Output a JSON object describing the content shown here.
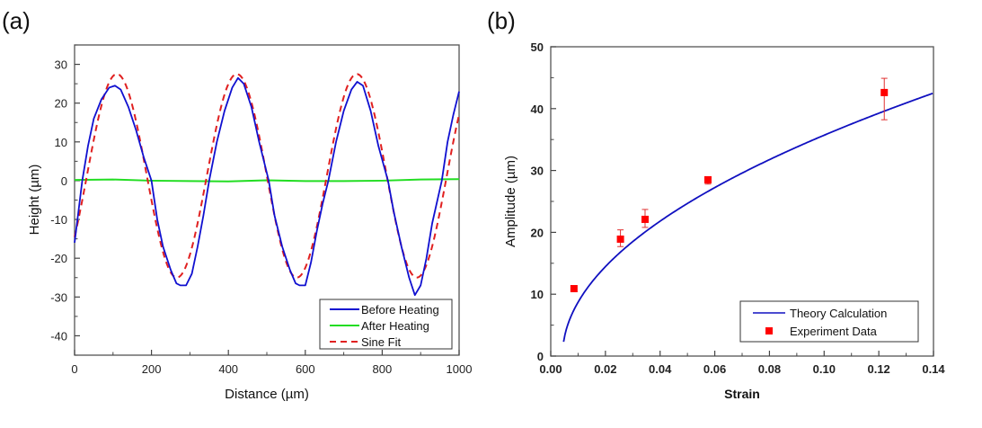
{
  "chart_data": [
    {
      "panel": "(a)",
      "type": "line",
      "title": "",
      "xlabel": "Distance (µm)",
      "ylabel": "Height (µm)",
      "xlim": [
        0,
        1000
      ],
      "ylim": [
        -45,
        35
      ],
      "xticks": [
        0,
        200,
        400,
        600,
        800,
        1000
      ],
      "yticks": [
        -40,
        -30,
        -20,
        -10,
        0,
        10,
        20,
        30
      ],
      "grid": false,
      "legend_position": "bottom-right",
      "series": [
        {
          "name": "Before Heating",
          "color": "#1010d0",
          "style": "solid",
          "x": [
            0,
            10,
            20,
            35,
            50,
            70,
            90,
            105,
            120,
            140,
            160,
            180,
            200,
            215,
            230,
            250,
            265,
            275,
            290,
            305,
            320,
            335,
            350,
            370,
            390,
            410,
            425,
            440,
            460,
            480,
            505,
            520,
            540,
            560,
            575,
            585,
            600,
            615,
            630,
            645,
            660,
            680,
            700,
            720,
            735,
            750,
            770,
            790,
            815,
            830,
            850,
            870,
            885,
            900,
            915,
            930,
            955,
            970,
            985,
            1000
          ],
          "y": [
            -16,
            -8,
            0,
            9,
            16,
            21,
            24,
            24.5,
            23.5,
            19,
            13,
            6,
            0,
            -10,
            -17,
            -23,
            -26.5,
            -27,
            -27,
            -24,
            -17,
            -9,
            0,
            10,
            18,
            24,
            26.5,
            25,
            19,
            10,
            0,
            -9,
            -17,
            -23,
            -26.5,
            -27,
            -27,
            -21,
            -13,
            -6,
            0,
            10,
            18,
            23.5,
            25.5,
            24.5,
            18,
            9,
            0,
            -8,
            -17,
            -25,
            -29.5,
            -27,
            -20,
            -11,
            0,
            10,
            17,
            23
          ]
        },
        {
          "name": "After Heating",
          "color": "#22dd22",
          "style": "solid",
          "x": [
            0,
            100,
            200,
            300,
            400,
            500,
            600,
            700,
            800,
            900,
            1000
          ],
          "y": [
            0.2,
            0.3,
            0,
            -0.1,
            -0.2,
            0.1,
            -0.1,
            -0.1,
            0,
            0.3,
            0.4
          ]
        },
        {
          "name": "Sine Fit",
          "color": "#e02020",
          "style": "dashed",
          "amplitude": 26.25,
          "offset": 1.25,
          "period": 312,
          "peak_x": 110,
          "x_start": 0,
          "x_end": 1000
        }
      ]
    },
    {
      "panel": "(b)",
      "type": "scatter",
      "title": "",
      "xlabel": "Strain",
      "ylabel": "Amplitude (µm)",
      "xlim": [
        0,
        0.14
      ],
      "ylim": [
        0,
        50
      ],
      "xticks": [
        "0.00",
        "0.02",
        "0.04",
        "0.06",
        "0.08",
        "0.10",
        "0.12",
        "0.14"
      ],
      "yticks": [
        0,
        10,
        20,
        30,
        40,
        50
      ],
      "grid": false,
      "legend_position": "bottom-right",
      "series": [
        {
          "name": "Theory Calculation",
          "type": "line",
          "color": "#1010c0",
          "model": "A = 115.4 * sqrt(strain - 0.0043)",
          "coef": 115.4,
          "strain0": 0.0043,
          "x_start": 0.0047,
          "x_end": 0.14
        },
        {
          "name": "Experiment Data",
          "type": "scatter",
          "color": "#ff0000",
          "points": [
            {
              "x": 0.0085,
              "y": 10.9,
              "err_low": 10.9,
              "err_high": 10.9
            },
            {
              "x": 0.0255,
              "y": 18.9,
              "err_low": 17.7,
              "err_high": 20.4
            },
            {
              "x": 0.0345,
              "y": 22.1,
              "err_low": 20.8,
              "err_high": 23.7
            },
            {
              "x": 0.0575,
              "y": 28.5,
              "err_low": 27.8,
              "err_high": 28.9
            },
            {
              "x": 0.122,
              "y": 42.6,
              "err_low": 38.2,
              "err_high": 44.9
            }
          ]
        }
      ]
    }
  ]
}
